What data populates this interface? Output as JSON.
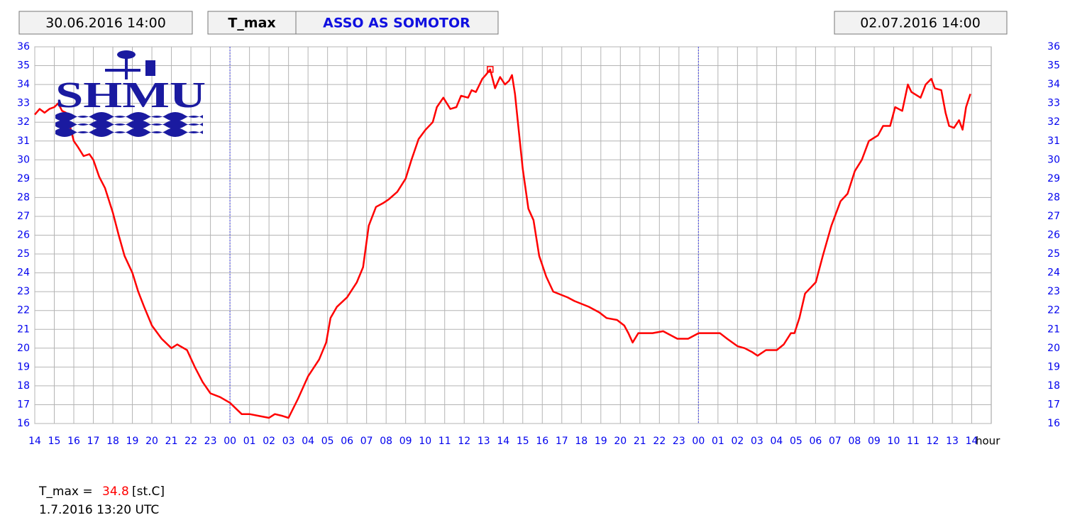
{
  "header": {
    "start": "30.06.2016 14:00",
    "variable": "T_max",
    "station": "ASSO AS SOMOTOR",
    "end": "02.07.2016 14:00"
  },
  "logo": "SHMU",
  "footer": {
    "label": "T_max =",
    "value": 34.8,
    "unit": "[st.C]",
    "time": "1.7.2016 13:20 UTC"
  },
  "chart_data": {
    "type": "line",
    "xlabel": "hour",
    "color": "#ff0000",
    "grid": true,
    "xlim": [
      0,
      49
    ],
    "ylim": [
      16,
      36
    ],
    "yticks": [
      16,
      17,
      18,
      19,
      20,
      21,
      22,
      23,
      24,
      25,
      26,
      27,
      28,
      29,
      30,
      31,
      32,
      33,
      34,
      35,
      36
    ],
    "y2lim": [
      16,
      36
    ],
    "y2ticks": [
      16,
      17,
      18,
      19,
      20,
      21,
      22,
      23,
      24,
      25,
      26,
      27,
      28,
      29,
      30,
      31,
      32,
      33,
      34,
      35,
      36
    ],
    "day_lines": [
      10,
      34
    ],
    "xticks": [
      {
        "value": 0,
        "label": "14"
      },
      {
        "value": 1,
        "label": "15"
      },
      {
        "value": 2,
        "label": "16"
      },
      {
        "value": 3,
        "label": "17"
      },
      {
        "value": 4,
        "label": "18"
      },
      {
        "value": 5,
        "label": "19"
      },
      {
        "value": 6,
        "label": "20"
      },
      {
        "value": 7,
        "label": "21"
      },
      {
        "value": 8,
        "label": "22"
      },
      {
        "value": 9,
        "label": "23"
      },
      {
        "value": 10,
        "label": "00"
      },
      {
        "value": 11,
        "label": "01"
      },
      {
        "value": 12,
        "label": "02"
      },
      {
        "value": 13,
        "label": "03"
      },
      {
        "value": 14,
        "label": "04"
      },
      {
        "value": 15,
        "label": "05"
      },
      {
        "value": 16,
        "label": "06"
      },
      {
        "value": 17,
        "label": "07"
      },
      {
        "value": 18,
        "label": "08"
      },
      {
        "value": 19,
        "label": "09"
      },
      {
        "value": 20,
        "label": "10"
      },
      {
        "value": 21,
        "label": "11"
      },
      {
        "value": 22,
        "label": "12"
      },
      {
        "value": 23,
        "label": "13"
      },
      {
        "value": 24,
        "label": "14"
      },
      {
        "value": 25,
        "label": "15"
      },
      {
        "value": 26,
        "label": "16"
      },
      {
        "value": 27,
        "label": "17"
      },
      {
        "value": 28,
        "label": "18"
      },
      {
        "value": 29,
        "label": "19"
      },
      {
        "value": 30,
        "label": "20"
      },
      {
        "value": 31,
        "label": "21"
      },
      {
        "value": 32,
        "label": "22"
      },
      {
        "value": 33,
        "label": "23"
      },
      {
        "value": 34,
        "label": "00"
      },
      {
        "value": 35,
        "label": "01"
      },
      {
        "value": 36,
        "label": "02"
      },
      {
        "value": 37,
        "label": "03"
      },
      {
        "value": 38,
        "label": "04"
      },
      {
        "value": 39,
        "label": "05"
      },
      {
        "value": 40,
        "label": "06"
      },
      {
        "value": 41,
        "label": "07"
      },
      {
        "value": 42,
        "label": "08"
      },
      {
        "value": 43,
        "label": "09"
      },
      {
        "value": 44,
        "label": "10"
      },
      {
        "value": 45,
        "label": "11"
      },
      {
        "value": 46,
        "label": "12"
      },
      {
        "value": 47,
        "label": "13"
      },
      {
        "value": 48,
        "label": "14"
      }
    ],
    "x": [
      0,
      0.25,
      0.5,
      0.75,
      1,
      1.2,
      1.4,
      1.6,
      1.8,
      2,
      2.2,
      2.5,
      2.8,
      3,
      3.3,
      3.6,
      4,
      4.3,
      4.6,
      5,
      5.3,
      5.6,
      6,
      6.5,
      7,
      7.3,
      7.8,
      8.2,
      8.6,
      9,
      9.5,
      10,
      10.3,
      10.6,
      11,
      11.5,
      12,
      12.3,
      12.7,
      13,
      13.48,
      14,
      14.57,
      14.93,
      15.15,
      15.48,
      16,
      16.5,
      16.82,
      17.11,
      17.48,
      17.84,
      18.13,
      18.57,
      19,
      19.3,
      19.66,
      20.02,
      20.39,
      20.6,
      20.93,
      21.29,
      21.6,
      21.84,
      22.2,
      22.38,
      22.6,
      22.93,
      23.1,
      23.33,
      23.58,
      23.84,
      24.09,
      24.3,
      24.45,
      24.6,
      24.74,
      25,
      25.29,
      25.55,
      25.84,
      26.2,
      26.56,
      27.29,
      27.65,
      28.38,
      28.92,
      29.29,
      29.83,
      30.2,
      30.41,
      30.63,
      30.92,
      31.65,
      32.19,
      32.92,
      33.47,
      34.01,
      35.1,
      35.47,
      36.01,
      36.37,
      36.74,
      37.03,
      37.46,
      38.01,
      38.37,
      38.74,
      38.92,
      39.17,
      39.46,
      40.01,
      40.37,
      40.81,
      41.28,
      41.64,
      42.01,
      42.37,
      42.73,
      43.2,
      43.46,
      43.82,
      44.08,
      44.44,
      44.73,
      44.91,
      45.38,
      45.64,
      45.93,
      46.11,
      46.44,
      46.66,
      46.84,
      47.09,
      47.35,
      47.53,
      47.71,
      47.93
    ],
    "values": [
      32.4,
      32.7,
      32.5,
      32.7,
      32.8,
      33.0,
      32.6,
      32.5,
      31.8,
      31.0,
      30.7,
      30.2,
      30.3,
      30.0,
      29.1,
      28.5,
      27.2,
      26.0,
      24.9,
      24.0,
      23.0,
      22.2,
      21.2,
      20.5,
      20.0,
      20.2,
      19.9,
      19.0,
      18.2,
      17.6,
      17.4,
      17.1,
      16.8,
      16.5,
      16.5,
      16.4,
      16.3,
      16.5,
      16.4,
      16.3,
      17.3,
      18.5,
      19.4,
      20.3,
      21.6,
      22.2,
      22.7,
      23.5,
      24.3,
      26.5,
      27.5,
      27.7,
      27.9,
      28.3,
      29.0,
      30.0,
      31.1,
      31.6,
      32.0,
      32.8,
      33.3,
      32.7,
      32.8,
      33.4,
      33.3,
      33.7,
      33.6,
      34.3,
      34.5,
      34.8,
      33.8,
      34.4,
      34.0,
      34.2,
      34.5,
      33.5,
      32.1,
      29.5,
      27.4,
      26.8,
      24.9,
      23.8,
      23.0,
      22.7,
      22.5,
      22.2,
      21.9,
      21.6,
      21.5,
      21.2,
      20.8,
      20.3,
      20.8,
      20.8,
      20.9,
      20.5,
      20.5,
      20.8,
      20.8,
      20.5,
      20.1,
      20.0,
      19.8,
      19.6,
      19.9,
      19.9,
      20.2,
      20.8,
      20.8,
      21.6,
      22.9,
      23.5,
      24.9,
      26.5,
      27.8,
      28.2,
      29.4,
      30.0,
      31.0,
      31.3,
      31.8,
      31.8,
      32.8,
      32.6,
      34.0,
      33.6,
      33.3,
      34.0,
      34.3,
      33.8,
      33.7,
      32.5,
      31.8,
      31.7,
      32.1,
      31.6,
      32.8,
      33.5
    ]
  }
}
